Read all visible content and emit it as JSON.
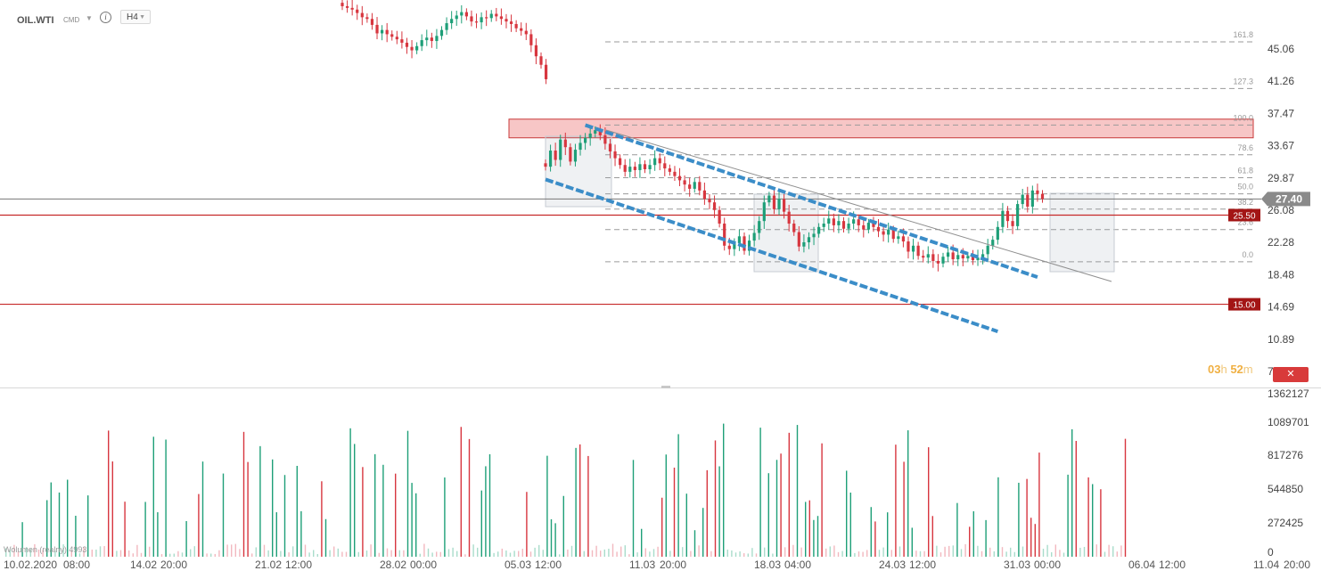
{
  "header": {
    "symbol": "OIL.WTI",
    "sub": "CMD",
    "caret": "▼",
    "info": "i",
    "timeframe": "H4",
    "timeframe_caret": "▼"
  },
  "countdown": {
    "h": "03",
    "h_unit": "h",
    "m": "52",
    "m_unit": "m"
  },
  "close_button": {
    "label": "✕"
  },
  "volume_legend": "Wolumen (realny) 4993",
  "colors": {
    "up": "#1e9f78",
    "down": "#d7363f",
    "fib_line": "#9a9a9a",
    "resistance_zone": "#f7c6c6",
    "resistance_border": "#c83a3a",
    "channel": "#3b8dc8",
    "level_line": "#c62828",
    "price_tag": "#8a8a8a"
  },
  "chart_data": [
    {
      "type": "candlestick",
      "title": "OIL.WTI H4",
      "y_axis": {
        "ticks": [
          "45.06",
          "41.26",
          "37.47",
          "33.67",
          "29.87",
          "26.08",
          "22.28",
          "18.48",
          "14.69",
          "10.89",
          "7.09"
        ],
        "ylim": [
          7.09,
          48.86
        ]
      },
      "x_axis": {
        "tick_labels": [
          "10.02.2020",
          "08:00",
          "14.02",
          "20:00",
          "21.02",
          "12:00",
          "28.02",
          "00:00",
          "05.03",
          "12:00",
          "11.03",
          "20:00",
          "18.03",
          "04:00",
          "24.03",
          "12:00",
          "31.03",
          "00:00",
          "06.04",
          "12:00",
          "11.04",
          "20:00"
        ]
      },
      "series_pre_gap_close": [
        50.1,
        49.9,
        49.7,
        49.3,
        48.8,
        48.6,
        47.9,
        46.9,
        47.3,
        46.8,
        46.5,
        46.2,
        45.8,
        45.3,
        44.9,
        45.4,
        46.1,
        46.4,
        46.0,
        46.6,
        47.3,
        48.1,
        48.6,
        49.0,
        49.4,
        48.9,
        48.3,
        48.2,
        48.8,
        48.7,
        49.2,
        48.9,
        48.6,
        48.3,
        48.0,
        47.5,
        47.2,
        46.8,
        45.5,
        44.2,
        43.2,
        41.5
      ],
      "series_post_gap_close": [
        31.2,
        33.1,
        32.0,
        34.4,
        33.5,
        31.8,
        33.2,
        34.0,
        34.6,
        35.1,
        35.5,
        34.9,
        33.9,
        33.0,
        32.2,
        31.4,
        30.6,
        31.2,
        30.8,
        31.5,
        30.9,
        31.4,
        32.2,
        31.6,
        31.0,
        30.6,
        30.1,
        29.6,
        29.1,
        28.6,
        29.4,
        28.4,
        27.4,
        27.0,
        26.1,
        24.5,
        21.9,
        21.5,
        22.2,
        23.0,
        21.3,
        22.5,
        23.4,
        24.8,
        27.0,
        27.8,
        26.2,
        27.4,
        25.9,
        24.5,
        23.5,
        21.8,
        22.3,
        22.9,
        23.3,
        24.1,
        24.5,
        25.1,
        24.3,
        24.8,
        23.9,
        24.5,
        25.0,
        24.3,
        23.8,
        24.6,
        24.1,
        23.6,
        23.2,
        23.8,
        22.7,
        23.0,
        22.4,
        21.2,
        21.9,
        20.7,
        20.5,
        20.9,
        20.1,
        19.8,
        20.6,
        21.1,
        20.3,
        20.8,
        20.4,
        20.7,
        20.2,
        20.5,
        20.9,
        21.9,
        22.6,
        24.1,
        26.0,
        24.8,
        24.2,
        26.8,
        27.9,
        26.5,
        28.4,
        28.0,
        27.4
      ],
      "fibonacci": {
        "levels": [
          {
            "label": "161.8",
            "value": 45.9
          },
          {
            "label": "127.3",
            "value": 40.4
          },
          {
            "label": "100.0",
            "value": 36.1
          },
          {
            "label": "78.6",
            "value": 32.6
          },
          {
            "label": "61.8",
            "value": 29.9
          },
          {
            "label": "50.0",
            "value": 28.0
          },
          {
            "label": "38.2",
            "value": 26.2
          },
          {
            "label": "23.6",
            "value": 23.8
          },
          {
            "label": "0.0",
            "value": 20.0
          }
        ]
      },
      "resistance_zone": {
        "from": 34.6,
        "to": 36.8
      },
      "horizontal_levels": [
        {
          "label": "25.50",
          "value": 25.5
        },
        {
          "label": "15.00",
          "value": 15.0
        }
      ],
      "current_price": {
        "label": "27.40",
        "value": 27.4
      },
      "current_price_line_value": 27.4,
      "channel": {
        "upper": {
          "from": {
            "x_index": 69,
            "price": 36.1
          },
          "to": {
            "x_index": 160,
            "price": 18.2
          }
        },
        "lower": {
          "from": {
            "x_index": 61,
            "price": 29.7
          },
          "to": {
            "x_index": 152,
            "price": 11.8
          }
        }
      }
    },
    {
      "type": "bar",
      "title": "Wolumen (realny)",
      "y_axis": {
        "ticks": [
          "1362127",
          "1089701",
          "817276",
          "544850",
          "272425",
          "0"
        ],
        "ylim": [
          0,
          1362127
        ]
      },
      "last_value": 4993
    }
  ]
}
